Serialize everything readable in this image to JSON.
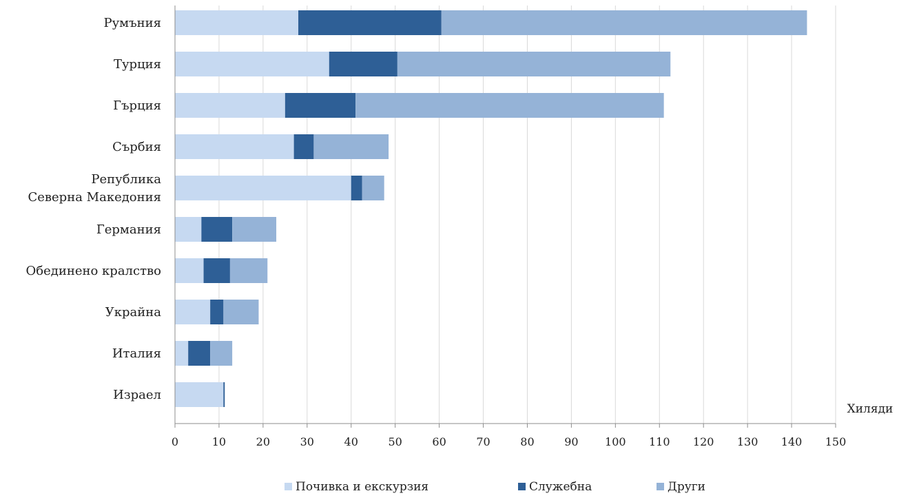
{
  "chart_data": {
    "type": "bar",
    "orientation": "horizontal",
    "stacked": true,
    "categories": [
      [
        "Румъния"
      ],
      [
        "Турция"
      ],
      [
        "Гърция"
      ],
      [
        "Сърбия"
      ],
      [
        "Република",
        "Северна Македония"
      ],
      [
        "Германия"
      ],
      [
        "Обединено кралство"
      ],
      [
        "Украйна"
      ],
      [
        "Италия"
      ],
      [
        "Израел"
      ]
    ],
    "series": [
      {
        "name": "Почивка и екскурзия",
        "color": "#c6d9f1",
        "values": [
          28,
          35,
          25,
          27,
          40,
          6,
          6.5,
          8,
          3,
          11
        ]
      },
      {
        "name": "Служебна",
        "color": "#2e5f96",
        "values": [
          32.5,
          15.5,
          16,
          4.5,
          2.5,
          7,
          6,
          3,
          5,
          0.3
        ]
      },
      {
        "name": "Други",
        "color": "#95b3d7",
        "values": [
          83,
          62,
          70,
          17,
          5,
          10,
          8.5,
          8,
          5,
          0
        ]
      }
    ],
    "xlim": [
      0,
      150
    ],
    "xticks": [
      0,
      10,
      20,
      30,
      40,
      50,
      60,
      70,
      80,
      90,
      100,
      110,
      120,
      130,
      140,
      150
    ],
    "xunit": "Хиляди",
    "grid": "vertical",
    "legend": "bottom-center"
  }
}
